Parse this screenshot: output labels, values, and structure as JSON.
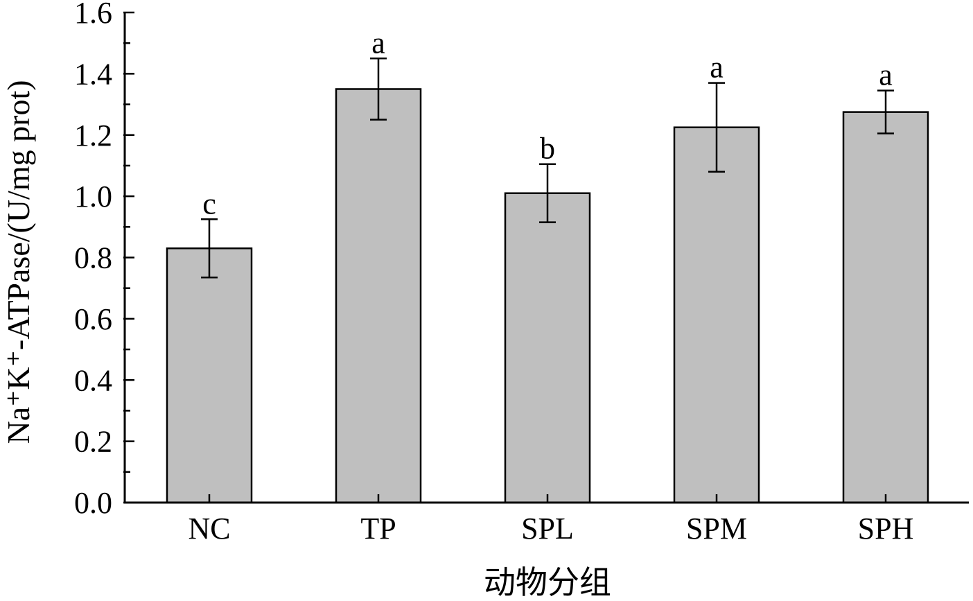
{
  "chart_data": {
    "type": "bar",
    "categories": [
      "NC",
      "TP",
      "SPL",
      "SPM",
      "SPH"
    ],
    "values": [
      0.83,
      1.35,
      1.01,
      1.225,
      1.275
    ],
    "errors": [
      0.095,
      0.1,
      0.095,
      0.145,
      0.07
    ],
    "significance": [
      "c",
      "a",
      "b",
      "a",
      "a"
    ],
    "xlabel": "动物分组",
    "ylabel": "Na⁺K⁺-ATPase/(U/mg prot)",
    "ylim": [
      0,
      1.6
    ],
    "yticks": [
      "0.0",
      "0.2",
      "0.4",
      "0.6",
      "0.8",
      "1.0",
      "1.2",
      "1.4",
      "1.6"
    ],
    "grid": false,
    "colors": {
      "bar_fill": "#bfbfbf",
      "bar_edge": "#000000"
    }
  }
}
